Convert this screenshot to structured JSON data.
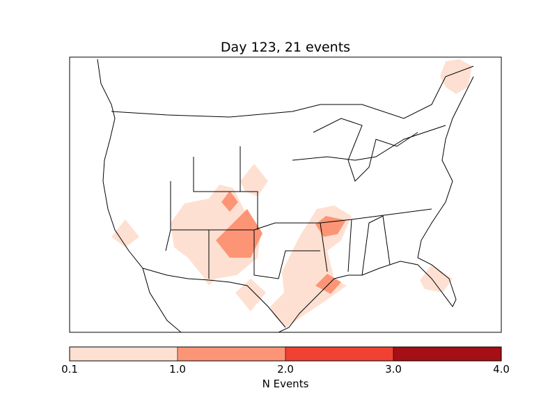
{
  "title": "Day 123, 21 events",
  "colorbar": {
    "label": "N Events",
    "ticks": [
      "0.1",
      "1.0",
      "2.0",
      "3.0",
      "4.0"
    ],
    "bins": [
      {
        "min": 0.1,
        "max": 1.0,
        "color": "#fee0d2"
      },
      {
        "min": 1.0,
        "max": 2.0,
        "color": "#fc9576"
      },
      {
        "min": 2.0,
        "max": 3.0,
        "color": "#f14133"
      },
      {
        "min": 3.0,
        "max": 4.0,
        "color": "#a50f15"
      }
    ]
  },
  "map_regions": [
    {
      "area": "northern Maine",
      "level": 0
    },
    {
      "area": "southern California",
      "level": 0
    },
    {
      "area": "Southwest / Arizona-New Mexico",
      "level": 0
    },
    {
      "area": "eastern Colorado / western Kansas",
      "level": 0
    },
    {
      "area": "Colorado",
      "level": 1
    },
    {
      "area": "New Mexico / Texas panhandle",
      "level": 1
    },
    {
      "area": "east Texas / Arkansas",
      "level": 0
    },
    {
      "area": "Arkansas / Missouri",
      "level": 1
    },
    {
      "area": "Houston area",
      "level": 1
    },
    {
      "area": "west Texas",
      "level": 0
    },
    {
      "area": "Florida",
      "level": 0
    }
  ]
}
